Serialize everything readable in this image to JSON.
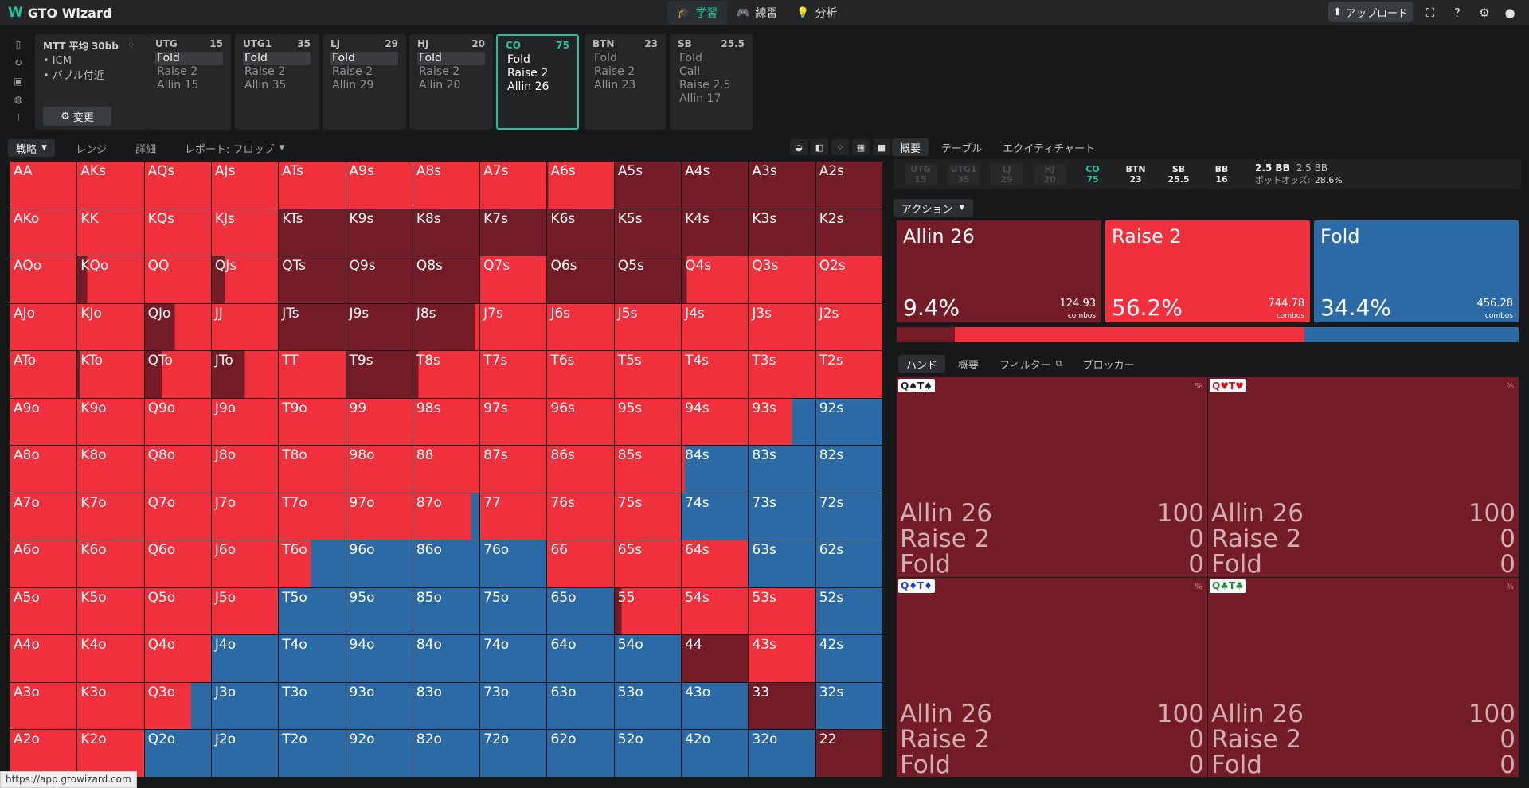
{
  "app": {
    "name": "GTO Wizard"
  },
  "nav": [
    {
      "icon": "graduation-cap-icon",
      "label": "学習",
      "active": true
    },
    {
      "icon": "gamepad-icon",
      "label": "練習",
      "active": false
    },
    {
      "icon": "lightbulb-icon",
      "label": "分析",
      "active": false
    }
  ],
  "topbar": {
    "upload_label": "アップロード"
  },
  "mtt": {
    "title": "MTT 平均 30bb",
    "bullets": [
      "• ICM",
      "• バブル付近"
    ],
    "change_label": "変更"
  },
  "positions": [
    {
      "name": "UTG",
      "stack": "15",
      "actions": [
        "Fold",
        "Raise 2",
        "Allin 15"
      ],
      "selected": 0
    },
    {
      "name": "UTG1",
      "stack": "35",
      "actions": [
        "Fold",
        "Raise 2",
        "Allin 35"
      ],
      "selected": 0
    },
    {
      "name": "LJ",
      "stack": "29",
      "actions": [
        "Fold",
        "Raise 2",
        "Allin 29"
      ],
      "selected": 0
    },
    {
      "name": "HJ",
      "stack": "20",
      "actions": [
        "Fold",
        "Raise 2",
        "Allin 20"
      ],
      "selected": 0
    },
    {
      "name": "CO",
      "stack": "75",
      "actions": [
        "Fold",
        "Raise 2",
        "Allin 26"
      ],
      "current": true
    },
    {
      "name": "BTN",
      "stack": "23",
      "actions": [
        "Fold",
        "Raise 2",
        "Allin 23"
      ]
    },
    {
      "name": "SB",
      "stack": "25.5",
      "actions": [
        "Fold",
        "Call",
        "Raise 2.5",
        "Allin 17"
      ]
    }
  ],
  "grid_tabs": {
    "strategy": "戦略",
    "range": "レンジ",
    "detail": "詳細",
    "report": "レポート: フロップ"
  },
  "colors": {
    "allin": "#731b26",
    "raise": "#f0303c",
    "fold": "#2b6aa4",
    "accent": "#22c39a"
  },
  "hands": [
    [
      "AA",
      "AKs",
      "AQs",
      "AJs",
      "ATs",
      "A9s",
      "A8s",
      "A7s",
      "A6s",
      "A5s",
      "A4s",
      "A3s",
      "A2s"
    ],
    [
      "AKo",
      "KK",
      "KQs",
      "KJs",
      "KTs",
      "K9s",
      "K8s",
      "K7s",
      "K6s",
      "K5s",
      "K4s",
      "K3s",
      "K2s"
    ],
    [
      "AQo",
      "KQo",
      "QQ",
      "QJs",
      "QTs",
      "Q9s",
      "Q8s",
      "Q7s",
      "Q6s",
      "Q5s",
      "Q4s",
      "Q3s",
      "Q2s"
    ],
    [
      "AJo",
      "KJo",
      "QJo",
      "JJ",
      "JTs",
      "J9s",
      "J8s",
      "J7s",
      "J6s",
      "J5s",
      "J4s",
      "J3s",
      "J2s"
    ],
    [
      "ATo",
      "KTo",
      "QTo",
      "JTo",
      "TT",
      "T9s",
      "T8s",
      "T7s",
      "T6s",
      "T5s",
      "T4s",
      "T3s",
      "T2s"
    ],
    [
      "A9o",
      "K9o",
      "Q9o",
      "J9o",
      "T9o",
      "99",
      "98s",
      "97s",
      "96s",
      "95s",
      "94s",
      "93s",
      "92s"
    ],
    [
      "A8o",
      "K8o",
      "Q8o",
      "J8o",
      "T8o",
      "98o",
      "88",
      "87s",
      "86s",
      "85s",
      "84s",
      "83s",
      "82s"
    ],
    [
      "A7o",
      "K7o",
      "Q7o",
      "J7o",
      "T7o",
      "97o",
      "87o",
      "77",
      "76s",
      "75s",
      "74s",
      "73s",
      "72s"
    ],
    [
      "A6o",
      "K6o",
      "Q6o",
      "J6o",
      "T6o",
      "96o",
      "86o",
      "76o",
      "66",
      "65s",
      "64s",
      "63s",
      "62s"
    ],
    [
      "A5o",
      "K5o",
      "Q5o",
      "J5o",
      "T5o",
      "95o",
      "85o",
      "75o",
      "65o",
      "55",
      "54s",
      "53s",
      "52s"
    ],
    [
      "A4o",
      "K4o",
      "Q4o",
      "J4o",
      "T4o",
      "94o",
      "84o",
      "74o",
      "64o",
      "54o",
      "44",
      "43s",
      "42s"
    ],
    [
      "A3o",
      "K3o",
      "Q3o",
      "J3o",
      "T3o",
      "93o",
      "83o",
      "73o",
      "63o",
      "53o",
      "43o",
      "33",
      "32s"
    ],
    [
      "A2o",
      "K2o",
      "Q2o",
      "J2o",
      "T2o",
      "92o",
      "82o",
      "72o",
      "62o",
      "52o",
      "42o",
      "32o",
      "22"
    ]
  ],
  "freq": [
    [
      [
        0,
        100,
        0
      ],
      [
        0,
        100,
        0
      ],
      [
        0,
        100,
        0
      ],
      [
        0,
        100,
        0
      ],
      [
        0,
        100,
        0
      ],
      [
        0,
        100,
        0
      ],
      [
        0,
        100,
        0
      ],
      [
        0,
        100,
        0
      ],
      [
        2,
        98,
        0
      ],
      [
        100,
        0,
        0
      ],
      [
        100,
        0,
        0
      ],
      [
        100,
        0,
        0
      ],
      [
        100,
        0,
        0
      ]
    ],
    [
      [
        0,
        100,
        0
      ],
      [
        0,
        100,
        0
      ],
      [
        0,
        100,
        0
      ],
      [
        0,
        100,
        0
      ],
      [
        100,
        0,
        0
      ],
      [
        100,
        0,
        0
      ],
      [
        100,
        0,
        0
      ],
      [
        100,
        0,
        0
      ],
      [
        100,
        0,
        0
      ],
      [
        100,
        0,
        0
      ],
      [
        100,
        0,
        0
      ],
      [
        100,
        0,
        0
      ],
      [
        100,
        0,
        0
      ]
    ],
    [
      [
        0,
        100,
        0
      ],
      [
        15,
        85,
        0
      ],
      [
        0,
        100,
        0
      ],
      [
        20,
        80,
        0
      ],
      [
        100,
        0,
        0
      ],
      [
        100,
        0,
        0
      ],
      [
        100,
        0,
        0
      ],
      [
        0,
        100,
        0
      ],
      [
        100,
        0,
        0
      ],
      [
        100,
        0,
        0
      ],
      [
        8,
        92,
        0
      ],
      [
        0,
        100,
        0
      ],
      [
        0,
        100,
        0
      ]
    ],
    [
      [
        0,
        100,
        0
      ],
      [
        0,
        100,
        0
      ],
      [
        45,
        55,
        0
      ],
      [
        0,
        100,
        0
      ],
      [
        100,
        0,
        0
      ],
      [
        100,
        0,
        0
      ],
      [
        93,
        7,
        0
      ],
      [
        0,
        100,
        0
      ],
      [
        0,
        100,
        0
      ],
      [
        0,
        100,
        0
      ],
      [
        0,
        100,
        0
      ],
      [
        0,
        100,
        0
      ],
      [
        0,
        100,
        0
      ]
    ],
    [
      [
        0,
        100,
        0
      ],
      [
        5,
        95,
        0
      ],
      [
        25,
        75,
        0
      ],
      [
        50,
        50,
        0
      ],
      [
        0,
        100,
        0
      ],
      [
        100,
        0,
        0
      ],
      [
        8,
        92,
        0
      ],
      [
        0,
        100,
        0
      ],
      [
        0,
        100,
        0
      ],
      [
        0,
        100,
        0
      ],
      [
        0,
        100,
        0
      ],
      [
        0,
        100,
        0
      ],
      [
        0,
        100,
        0
      ]
    ],
    [
      [
        0,
        100,
        0
      ],
      [
        0,
        100,
        0
      ],
      [
        0,
        100,
        0
      ],
      [
        0,
        100,
        0
      ],
      [
        0,
        100,
        0
      ],
      [
        0,
        100,
        0
      ],
      [
        0,
        100,
        0
      ],
      [
        0,
        100,
        0
      ],
      [
        0,
        100,
        0
      ],
      [
        0,
        100,
        0
      ],
      [
        0,
        100,
        0
      ],
      [
        0,
        65,
        35
      ],
      [
        0,
        0,
        100
      ]
    ],
    [
      [
        0,
        100,
        0
      ],
      [
        0,
        100,
        0
      ],
      [
        0,
        100,
        0
      ],
      [
        0,
        100,
        0
      ],
      [
        0,
        100,
        0
      ],
      [
        0,
        100,
        0
      ],
      [
        0,
        100,
        0
      ],
      [
        0,
        100,
        0
      ],
      [
        0,
        100,
        0
      ],
      [
        0,
        100,
        0
      ],
      [
        0,
        5,
        95
      ],
      [
        0,
        0,
        100
      ],
      [
        0,
        0,
        100
      ]
    ],
    [
      [
        0,
        100,
        0
      ],
      [
        0,
        100,
        0
      ],
      [
        0,
        100,
        0
      ],
      [
        0,
        100,
        0
      ],
      [
        0,
        100,
        0
      ],
      [
        0,
        100,
        0
      ],
      [
        0,
        88,
        12
      ],
      [
        0,
        100,
        0
      ],
      [
        0,
        100,
        0
      ],
      [
        0,
        100,
        0
      ],
      [
        0,
        0,
        100
      ],
      [
        0,
        0,
        100
      ],
      [
        0,
        0,
        100
      ]
    ],
    [
      [
        0,
        100,
        0
      ],
      [
        0,
        100,
        0
      ],
      [
        0,
        100,
        0
      ],
      [
        0,
        100,
        0
      ],
      [
        0,
        48,
        52
      ],
      [
        0,
        0,
        100
      ],
      [
        0,
        0,
        100
      ],
      [
        0,
        0,
        100
      ],
      [
        0,
        100,
        0
      ],
      [
        0,
        100,
        0
      ],
      [
        0,
        100,
        0
      ],
      [
        0,
        0,
        100
      ],
      [
        0,
        0,
        100
      ]
    ],
    [
      [
        0,
        100,
        0
      ],
      [
        0,
        100,
        0
      ],
      [
        0,
        100,
        0
      ],
      [
        0,
        100,
        0
      ],
      [
        0,
        0,
        100
      ],
      [
        0,
        0,
        100
      ],
      [
        0,
        0,
        100
      ],
      [
        0,
        0,
        100
      ],
      [
        0,
        0,
        100
      ],
      [
        10,
        90,
        0
      ],
      [
        0,
        100,
        0
      ],
      [
        0,
        100,
        0
      ],
      [
        0,
        0,
        100
      ]
    ],
    [
      [
        0,
        100,
        0
      ],
      [
        0,
        100,
        0
      ],
      [
        0,
        100,
        0
      ],
      [
        0,
        0,
        100
      ],
      [
        0,
        0,
        100
      ],
      [
        0,
        0,
        100
      ],
      [
        0,
        0,
        100
      ],
      [
        0,
        0,
        100
      ],
      [
        0,
        0,
        100
      ],
      [
        0,
        0,
        100
      ],
      [
        100,
        0,
        0
      ],
      [
        0,
        100,
        0
      ],
      [
        0,
        0,
        100
      ]
    ],
    [
      [
        0,
        100,
        0
      ],
      [
        0,
        100,
        0
      ],
      [
        0,
        70,
        30
      ],
      [
        0,
        0,
        100
      ],
      [
        0,
        0,
        100
      ],
      [
        0,
        0,
        100
      ],
      [
        0,
        0,
        100
      ],
      [
        0,
        0,
        100
      ],
      [
        0,
        0,
        100
      ],
      [
        0,
        0,
        100
      ],
      [
        0,
        0,
        100
      ],
      [
        100,
        0,
        0
      ],
      [
        0,
        0,
        100
      ]
    ],
    [
      [
        0,
        100,
        0
      ],
      [
        0,
        100,
        0
      ],
      [
        0,
        0,
        100
      ],
      [
        0,
        0,
        100
      ],
      [
        0,
        0,
        100
      ],
      [
        0,
        0,
        100
      ],
      [
        0,
        0,
        100
      ],
      [
        0,
        0,
        100
      ],
      [
        0,
        0,
        100
      ],
      [
        0,
        0,
        100
      ],
      [
        0,
        0,
        100
      ],
      [
        0,
        0,
        100
      ],
      [
        100,
        0,
        0
      ]
    ]
  ],
  "right_tabs": {
    "overview": "概要",
    "table": "テーブル",
    "equity": "エクイティチャート"
  },
  "seats": [
    {
      "name": "UTG",
      "stack": "15",
      "state": "folded"
    },
    {
      "name": "UTG1",
      "stack": "35",
      "state": "folded"
    },
    {
      "name": "LJ",
      "stack": "29",
      "state": "folded"
    },
    {
      "name": "HJ",
      "stack": "20",
      "state": "folded"
    },
    {
      "name": "CO",
      "stack": "75",
      "state": "active"
    },
    {
      "name": "BTN",
      "stack": "23",
      "state": "waiting"
    },
    {
      "name": "SB",
      "stack": "25.5",
      "state": "waiting"
    },
    {
      "name": "BB",
      "stack": "16",
      "state": "waiting"
    }
  ],
  "pot": {
    "main": "2.5 BB",
    "secondary": "2.5 BB",
    "odds_label": "ポットオッズ:",
    "odds_value": "28.6%"
  },
  "action_dropdown": "アクション",
  "actions": [
    {
      "label": "Allin 26",
      "pct": "9.4%",
      "combos": "124.93",
      "combos_label": "combos",
      "color": "#731b26",
      "freq": 9.4
    },
    {
      "label": "Raise 2",
      "pct": "56.2%",
      "combos": "744.78",
      "combos_label": "combos",
      "color": "#f0303c",
      "freq": 56.2
    },
    {
      "label": "Fold",
      "pct": "34.4%",
      "combos": "456.28",
      "combos_label": "combos",
      "color": "#2b6aa4",
      "freq": 34.4
    }
  ],
  "hand_tabs": {
    "hand": "ハンド",
    "overview": "概要",
    "filter": "フィルター",
    "blocker": "ブロッカー"
  },
  "combos": [
    {
      "cards": [
        {
          "r": "Q",
          "s": "♠",
          "c": "#222"
        },
        {
          "r": "T",
          "s": "♠",
          "c": "#222"
        }
      ],
      "rows": [
        {
          "label": "Allin 26",
          "val": "100"
        },
        {
          "label": "Raise 2",
          "val": "0"
        },
        {
          "label": "Fold",
          "val": "0"
        }
      ],
      "pct_label": "%"
    },
    {
      "cards": [
        {
          "r": "Q",
          "s": "♥",
          "c": "#d0152a"
        },
        {
          "r": "T",
          "s": "♥",
          "c": "#d0152a"
        }
      ],
      "rows": [
        {
          "label": "Allin 26",
          "val": "100"
        },
        {
          "label": "Raise 2",
          "val": "0"
        },
        {
          "label": "Fold",
          "val": "0"
        }
      ],
      "pct_label": "%"
    },
    {
      "cards": [
        {
          "r": "Q",
          "s": "♦",
          "c": "#1a3fc8"
        },
        {
          "r": "T",
          "s": "♦",
          "c": "#1a3fc8"
        }
      ],
      "rows": [
        {
          "label": "Allin 26",
          "val": "100"
        },
        {
          "label": "Raise 2",
          "val": "0"
        },
        {
          "label": "Fold",
          "val": "0"
        }
      ],
      "pct_label": "%"
    },
    {
      "cards": [
        {
          "r": "Q",
          "s": "♣",
          "c": "#1f8a3a"
        },
        {
          "r": "T",
          "s": "♣",
          "c": "#1f8a3a"
        }
      ],
      "rows": [
        {
          "label": "Allin 26",
          "val": "100"
        },
        {
          "label": "Raise 2",
          "val": "0"
        },
        {
          "label": "Fold",
          "val": "0"
        }
      ],
      "pct_label": "%"
    }
  ],
  "status_url": "https://app.gtowizard.com"
}
